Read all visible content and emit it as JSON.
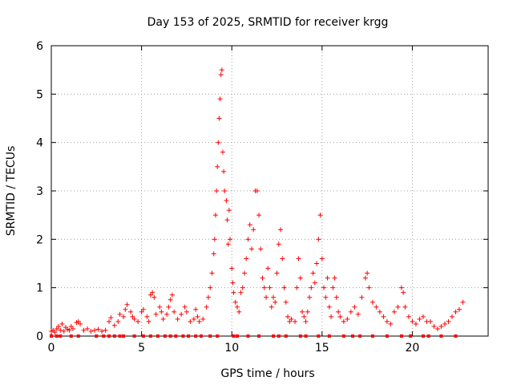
{
  "chart_data": {
    "type": "scatter",
    "title": "Day 153 of 2025, SRMTID for receiver krgg",
    "xlabel": "GPS time / hours",
    "ylabel": "SRMTID / TECUs",
    "xlim": [
      0,
      24.2
    ],
    "ylim": [
      0,
      6
    ],
    "xticks": [
      0,
      5,
      10,
      15,
      20
    ],
    "yticks": [
      0,
      1,
      2,
      3,
      4,
      5,
      6
    ],
    "grid": true,
    "marker": "+",
    "marker_color": "#ff0000",
    "series": [
      {
        "name": "SRMTID",
        "points": [
          [
            0.0,
            0.1
          ],
          [
            0.1,
            0.12
          ],
          [
            0.2,
            0.08
          ],
          [
            0.3,
            0.15
          ],
          [
            0.4,
            0.2
          ],
          [
            0.5,
            0.12
          ],
          [
            0.6,
            0.25
          ],
          [
            0.7,
            0.1
          ],
          [
            0.8,
            0.18
          ],
          [
            0.9,
            0.14
          ],
          [
            1.0,
            0.12
          ],
          [
            1.1,
            0.2
          ],
          [
            1.2,
            0.15
          ],
          [
            1.4,
            0.28
          ],
          [
            1.5,
            0.3
          ],
          [
            1.6,
            0.25
          ],
          [
            1.8,
            0.12
          ],
          [
            2.0,
            0.15
          ],
          [
            2.2,
            0.1
          ],
          [
            2.4,
            0.12
          ],
          [
            2.6,
            0.14
          ],
          [
            2.8,
            0.1
          ],
          [
            3.0,
            0.12
          ],
          [
            3.2,
            0.3
          ],
          [
            3.3,
            0.38
          ],
          [
            3.5,
            0.22
          ],
          [
            3.7,
            0.3
          ],
          [
            3.8,
            0.45
          ],
          [
            4.0,
            0.4
          ],
          [
            4.1,
            0.55
          ],
          [
            4.2,
            0.65
          ],
          [
            4.4,
            0.5
          ],
          [
            4.5,
            0.4
          ],
          [
            4.6,
            0.35
          ],
          [
            4.8,
            0.3
          ],
          [
            5.0,
            0.5
          ],
          [
            5.1,
            0.55
          ],
          [
            5.3,
            0.4
          ],
          [
            5.4,
            0.3
          ],
          [
            5.5,
            0.85
          ],
          [
            5.6,
            0.9
          ],
          [
            5.7,
            0.8
          ],
          [
            5.8,
            0.45
          ],
          [
            6.0,
            0.6
          ],
          [
            6.1,
            0.5
          ],
          [
            6.2,
            0.35
          ],
          [
            6.4,
            0.45
          ],
          [
            6.5,
            0.6
          ],
          [
            6.6,
            0.75
          ],
          [
            6.7,
            0.85
          ],
          [
            6.8,
            0.5
          ],
          [
            7.0,
            0.35
          ],
          [
            7.2,
            0.45
          ],
          [
            7.4,
            0.6
          ],
          [
            7.5,
            0.5
          ],
          [
            7.7,
            0.3
          ],
          [
            7.9,
            0.35
          ],
          [
            8.0,
            0.55
          ],
          [
            8.1,
            0.4
          ],
          [
            8.2,
            0.3
          ],
          [
            8.4,
            0.35
          ],
          [
            8.6,
            0.6
          ],
          [
            8.7,
            0.8
          ],
          [
            8.8,
            1.0
          ],
          [
            8.9,
            1.3
          ],
          [
            9.0,
            1.7
          ],
          [
            9.05,
            2.0
          ],
          [
            9.1,
            2.5
          ],
          [
            9.15,
            3.0
          ],
          [
            9.2,
            3.5
          ],
          [
            9.25,
            4.0
          ],
          [
            9.3,
            4.5
          ],
          [
            9.35,
            4.9
          ],
          [
            9.4,
            5.4
          ],
          [
            9.45,
            5.5
          ],
          [
            9.5,
            3.8
          ],
          [
            9.55,
            3.4
          ],
          [
            9.6,
            3.0
          ],
          [
            9.7,
            2.8
          ],
          [
            9.75,
            2.4
          ],
          [
            9.8,
            1.9
          ],
          [
            9.85,
            2.6
          ],
          [
            9.9,
            2.0
          ],
          [
            10.0,
            1.4
          ],
          [
            10.05,
            1.1
          ],
          [
            10.1,
            0.9
          ],
          [
            10.2,
            0.7
          ],
          [
            10.3,
            0.6
          ],
          [
            10.4,
            0.5
          ],
          [
            10.5,
            0.9
          ],
          [
            10.6,
            1.0
          ],
          [
            10.7,
            1.3
          ],
          [
            10.8,
            1.6
          ],
          [
            10.9,
            2.0
          ],
          [
            11.0,
            2.3
          ],
          [
            11.1,
            1.8
          ],
          [
            11.2,
            2.2
          ],
          [
            11.3,
            3.0
          ],
          [
            11.4,
            3.0
          ],
          [
            11.5,
            2.5
          ],
          [
            11.6,
            1.8
          ],
          [
            11.7,
            1.2
          ],
          [
            11.8,
            1.0
          ],
          [
            11.9,
            0.8
          ],
          [
            12.0,
            1.4
          ],
          [
            12.1,
            1.0
          ],
          [
            12.2,
            0.6
          ],
          [
            12.3,
            0.8
          ],
          [
            12.4,
            0.7
          ],
          [
            12.5,
            1.3
          ],
          [
            12.6,
            1.9
          ],
          [
            12.7,
            2.2
          ],
          [
            12.8,
            1.6
          ],
          [
            12.9,
            1.0
          ],
          [
            13.0,
            0.7
          ],
          [
            13.1,
            0.4
          ],
          [
            13.2,
            0.3
          ],
          [
            13.3,
            0.35
          ],
          [
            13.5,
            0.3
          ],
          [
            13.6,
            1.0
          ],
          [
            13.7,
            1.6
          ],
          [
            13.8,
            1.2
          ],
          [
            13.9,
            0.5
          ],
          [
            14.0,
            0.4
          ],
          [
            14.1,
            0.3
          ],
          [
            14.2,
            0.5
          ],
          [
            14.3,
            0.8
          ],
          [
            14.4,
            1.0
          ],
          [
            14.5,
            1.3
          ],
          [
            14.6,
            1.1
          ],
          [
            14.7,
            1.5
          ],
          [
            14.8,
            2.0
          ],
          [
            14.9,
            2.5
          ],
          [
            15.0,
            1.6
          ],
          [
            15.1,
            1.0
          ],
          [
            15.2,
            0.8
          ],
          [
            15.3,
            1.2
          ],
          [
            15.4,
            0.6
          ],
          [
            15.5,
            0.4
          ],
          [
            15.6,
            1.0
          ],
          [
            15.7,
            1.2
          ],
          [
            15.8,
            0.8
          ],
          [
            15.9,
            0.5
          ],
          [
            16.0,
            0.4
          ],
          [
            16.2,
            0.3
          ],
          [
            16.4,
            0.35
          ],
          [
            16.6,
            0.5
          ],
          [
            16.8,
            0.6
          ],
          [
            17.0,
            0.45
          ],
          [
            17.2,
            0.8
          ],
          [
            17.4,
            1.2
          ],
          [
            17.5,
            1.3
          ],
          [
            17.6,
            1.0
          ],
          [
            17.8,
            0.7
          ],
          [
            18.0,
            0.6
          ],
          [
            18.2,
            0.5
          ],
          [
            18.4,
            0.4
          ],
          [
            18.6,
            0.3
          ],
          [
            18.8,
            0.25
          ],
          [
            19.0,
            0.5
          ],
          [
            19.2,
            0.6
          ],
          [
            19.4,
            1.0
          ],
          [
            19.5,
            0.9
          ],
          [
            19.6,
            0.6
          ],
          [
            19.8,
            0.4
          ],
          [
            20.0,
            0.3
          ],
          [
            20.2,
            0.25
          ],
          [
            20.4,
            0.35
          ],
          [
            20.6,
            0.4
          ],
          [
            20.8,
            0.3
          ],
          [
            21.0,
            0.3
          ],
          [
            21.2,
            0.2
          ],
          [
            21.4,
            0.15
          ],
          [
            21.6,
            0.2
          ],
          [
            21.8,
            0.25
          ],
          [
            22.0,
            0.3
          ],
          [
            22.2,
            0.4
          ],
          [
            22.4,
            0.5
          ],
          [
            22.6,
            0.55
          ],
          [
            22.8,
            0.7
          ]
        ]
      }
    ],
    "zero_markers": [
      0.0,
      0.3,
      0.5,
      1.1,
      1.5,
      2.5,
      2.9,
      3.2,
      3.5,
      3.8,
      4.0,
      4.6,
      5.1,
      5.5,
      5.9,
      6.3,
      6.6,
      6.9,
      7.3,
      7.6,
      8.0,
      8.3,
      8.8,
      9.2,
      10.1,
      10.3,
      10.9,
      11.5,
      12.3,
      12.6,
      13.0,
      13.8,
      14.1,
      14.8,
      15.4,
      16.2,
      16.7,
      17.1,
      17.8,
      18.6,
      19.4,
      19.9,
      20.6,
      20.9,
      21.6,
      22.4
    ]
  }
}
